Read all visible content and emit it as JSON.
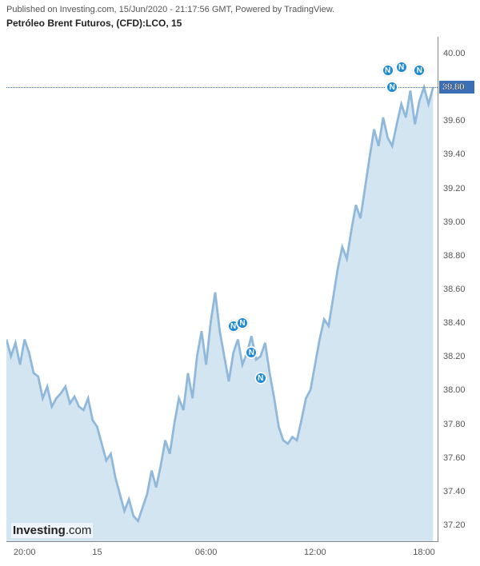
{
  "header": {
    "published": "Published on Investing.com, 15/Jun/2020 - 21:17:56 GMT, Powered by TradingView."
  },
  "title": "Petróleo Brent Futuros, (CFD):LCO, 15",
  "chart": {
    "type": "area",
    "x_range": [
      0,
      95
    ],
    "y_range": [
      37.1,
      40.1
    ],
    "line_color": "#8fb8db",
    "fill_color": "#d4e5f2",
    "line_width": 1.5,
    "background_color": "#ffffff",
    "axis_color": "#888888",
    "tick_color": "#555555",
    "tick_fontsize": 11,
    "current_price": {
      "value": 39.8,
      "label": "39.80",
      "line_color": "#3a6fb7",
      "label_bg": "#3a6fb7",
      "label_color": "#ffffff"
    },
    "y_ticks": [
      {
        "v": 37.2,
        "label": "37.20"
      },
      {
        "v": 37.4,
        "label": "37.40"
      },
      {
        "v": 37.6,
        "label": "37.60"
      },
      {
        "v": 37.8,
        "label": "37.80"
      },
      {
        "v": 38.0,
        "label": "38.00"
      },
      {
        "v": 38.2,
        "label": "38.20"
      },
      {
        "v": 38.4,
        "label": "38.40"
      },
      {
        "v": 38.6,
        "label": "38.60"
      },
      {
        "v": 38.8,
        "label": "38.80"
      },
      {
        "v": 39.0,
        "label": "39.00"
      },
      {
        "v": 39.2,
        "label": "39.20"
      },
      {
        "v": 39.4,
        "label": "39.40"
      },
      {
        "v": 39.6,
        "label": "39.60"
      },
      {
        "v": 39.8,
        "label": "39.80"
      },
      {
        "v": 40.0,
        "label": "40.00"
      }
    ],
    "x_ticks": [
      {
        "x": 4,
        "label": "20:00"
      },
      {
        "x": 20,
        "label": "15"
      },
      {
        "x": 44,
        "label": "06:00"
      },
      {
        "x": 68,
        "label": "12:00"
      },
      {
        "x": 92,
        "label": "18:00"
      }
    ],
    "series": [
      {
        "x": 0,
        "y": 38.3
      },
      {
        "x": 1,
        "y": 38.2
      },
      {
        "x": 2,
        "y": 38.28
      },
      {
        "x": 3,
        "y": 38.15
      },
      {
        "x": 4,
        "y": 38.3
      },
      {
        "x": 5,
        "y": 38.22
      },
      {
        "x": 6,
        "y": 38.1
      },
      {
        "x": 7,
        "y": 38.08
      },
      {
        "x": 8,
        "y": 37.95
      },
      {
        "x": 9,
        "y": 38.02
      },
      {
        "x": 10,
        "y": 37.9
      },
      {
        "x": 11,
        "y": 37.95
      },
      {
        "x": 12,
        "y": 37.98
      },
      {
        "x": 13,
        "y": 38.02
      },
      {
        "x": 14,
        "y": 37.92
      },
      {
        "x": 15,
        "y": 37.96
      },
      {
        "x": 16,
        "y": 37.9
      },
      {
        "x": 17,
        "y": 37.88
      },
      {
        "x": 18,
        "y": 37.95
      },
      {
        "x": 19,
        "y": 37.82
      },
      {
        "x": 20,
        "y": 37.78
      },
      {
        "x": 21,
        "y": 37.68
      },
      {
        "x": 22,
        "y": 37.58
      },
      {
        "x": 23,
        "y": 37.62
      },
      {
        "x": 24,
        "y": 37.48
      },
      {
        "x": 25,
        "y": 37.38
      },
      {
        "x": 26,
        "y": 37.28
      },
      {
        "x": 27,
        "y": 37.35
      },
      {
        "x": 28,
        "y": 37.25
      },
      {
        "x": 29,
        "y": 37.22
      },
      {
        "x": 30,
        "y": 37.3
      },
      {
        "x": 31,
        "y": 37.38
      },
      {
        "x": 32,
        "y": 37.52
      },
      {
        "x": 33,
        "y": 37.42
      },
      {
        "x": 34,
        "y": 37.55
      },
      {
        "x": 35,
        "y": 37.7
      },
      {
        "x": 36,
        "y": 37.62
      },
      {
        "x": 37,
        "y": 37.8
      },
      {
        "x": 38,
        "y": 37.95
      },
      {
        "x": 39,
        "y": 37.88
      },
      {
        "x": 40,
        "y": 38.1
      },
      {
        "x": 41,
        "y": 37.95
      },
      {
        "x": 42,
        "y": 38.2
      },
      {
        "x": 43,
        "y": 38.35
      },
      {
        "x": 44,
        "y": 38.15
      },
      {
        "x": 45,
        "y": 38.4
      },
      {
        "x": 46,
        "y": 38.58
      },
      {
        "x": 47,
        "y": 38.35
      },
      {
        "x": 48,
        "y": 38.2
      },
      {
        "x": 49,
        "y": 38.05
      },
      {
        "x": 50,
        "y": 38.22
      },
      {
        "x": 51,
        "y": 38.3
      },
      {
        "x": 52,
        "y": 38.15
      },
      {
        "x": 53,
        "y": 38.22
      },
      {
        "x": 54,
        "y": 38.32
      },
      {
        "x": 55,
        "y": 38.18
      },
      {
        "x": 56,
        "y": 38.2
      },
      {
        "x": 57,
        "y": 38.28
      },
      {
        "x": 58,
        "y": 38.1
      },
      {
        "x": 59,
        "y": 37.95
      },
      {
        "x": 60,
        "y": 37.78
      },
      {
        "x": 61,
        "y": 37.7
      },
      {
        "x": 62,
        "y": 37.68
      },
      {
        "x": 63,
        "y": 37.72
      },
      {
        "x": 64,
        "y": 37.7
      },
      {
        "x": 65,
        "y": 37.82
      },
      {
        "x": 66,
        "y": 37.95
      },
      {
        "x": 67,
        "y": 38.0
      },
      {
        "x": 68,
        "y": 38.15
      },
      {
        "x": 69,
        "y": 38.3
      },
      {
        "x": 70,
        "y": 38.42
      },
      {
        "x": 71,
        "y": 38.38
      },
      {
        "x": 72,
        "y": 38.55
      },
      {
        "x": 73,
        "y": 38.72
      },
      {
        "x": 74,
        "y": 38.85
      },
      {
        "x": 75,
        "y": 38.78
      },
      {
        "x": 76,
        "y": 38.95
      },
      {
        "x": 77,
        "y": 39.1
      },
      {
        "x": 78,
        "y": 39.02
      },
      {
        "x": 79,
        "y": 39.2
      },
      {
        "x": 80,
        "y": 39.38
      },
      {
        "x": 81,
        "y": 39.55
      },
      {
        "x": 82,
        "y": 39.45
      },
      {
        "x": 83,
        "y": 39.62
      },
      {
        "x": 84,
        "y": 39.5
      },
      {
        "x": 85,
        "y": 39.45
      },
      {
        "x": 86,
        "y": 39.58
      },
      {
        "x": 87,
        "y": 39.7
      },
      {
        "x": 88,
        "y": 39.62
      },
      {
        "x": 89,
        "y": 39.78
      },
      {
        "x": 90,
        "y": 39.58
      },
      {
        "x": 91,
        "y": 39.72
      },
      {
        "x": 92,
        "y": 39.8
      },
      {
        "x": 93,
        "y": 39.7
      },
      {
        "x": 94,
        "y": 39.8
      }
    ],
    "news_markers": {
      "label": "N",
      "bg_color": "#1f8ad6",
      "border_color": "#ffffff",
      "points": [
        {
          "x": 50,
          "y": 38.38
        },
        {
          "x": 52,
          "y": 38.4
        },
        {
          "x": 54,
          "y": 38.22
        },
        {
          "x": 56,
          "y": 38.07
        },
        {
          "x": 84,
          "y": 39.9
        },
        {
          "x": 85,
          "y": 39.8
        },
        {
          "x": 87,
          "y": 39.92
        },
        {
          "x": 91,
          "y": 39.9
        }
      ]
    }
  },
  "logo": {
    "part1": "Investing",
    "part2": ".com"
  }
}
